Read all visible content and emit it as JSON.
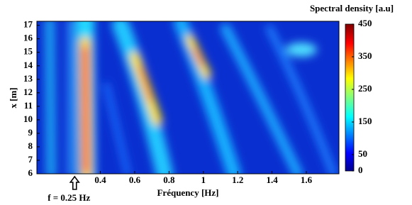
{
  "chart_data": {
    "type": "heatmap",
    "colorbar_title": "Spectral density [a.u]",
    "xlabel": "Fréquency [Hz]",
    "ylabel": "x [m]",
    "xlim": [
      0.03,
      1.79
    ],
    "xticks": [
      0.4,
      0.6,
      0.8,
      1,
      1.2,
      1.4,
      1.6
    ],
    "ylim": [
      6,
      17.3
    ],
    "yticks": [
      6,
      7,
      8,
      9,
      10,
      11,
      12,
      13,
      14,
      15,
      16,
      17
    ],
    "clim": [
      0,
      450
    ],
    "cticks": [
      0,
      50,
      150,
      250,
      350,
      450
    ],
    "colormap": "jet",
    "annotation": {
      "text": "f = 0.25 Hz",
      "x": 0.25
    }
  }
}
